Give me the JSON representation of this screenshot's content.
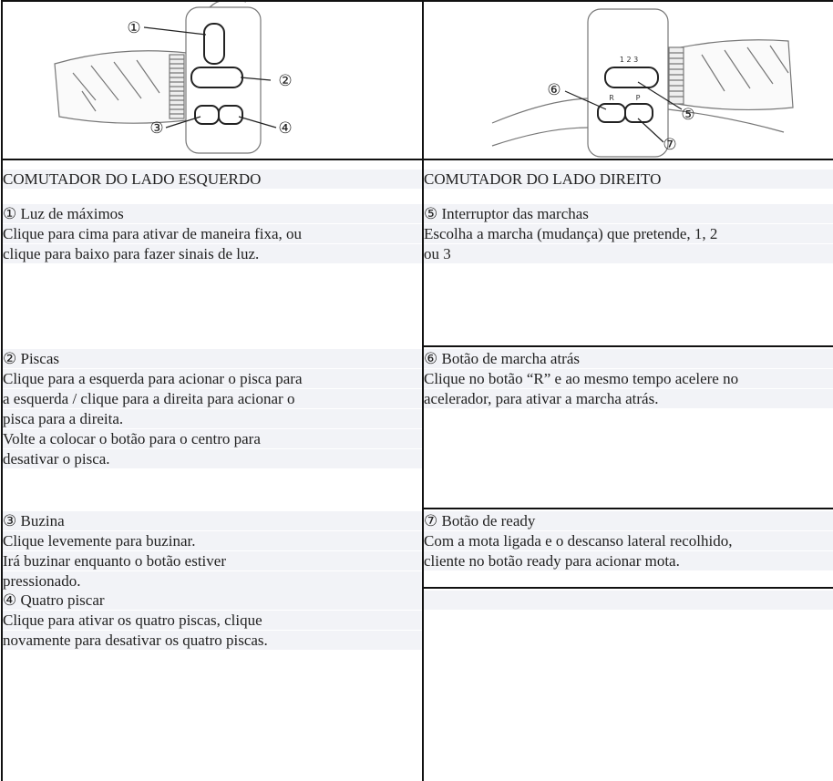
{
  "table": {
    "images": {
      "left": {
        "labels": [
          "①",
          "②",
          "③",
          "④"
        ]
      },
      "right": {
        "labels": [
          "⑤",
          "⑥",
          "⑦"
        ],
        "marks": [
          "1 2 3",
          "R",
          "P"
        ]
      }
    },
    "rows": [
      [
        {
          "heading": "COMUTADOR DO LADO ESQUERDO",
          "lines": [
            "① Luz de máximos",
            "Clique para cima para ativar de maneira fixa, ou",
            "clique para baixo para fazer sinais de luz."
          ]
        },
        {
          "heading": "COMUTADOR DO LADO DIREITO",
          "lines": [
            "⑤ Interruptor das marchas",
            " Escolha a marcha (mudança) que pretende, 1, 2",
            "ou 3"
          ]
        }
      ],
      [
        {
          "lines": [
            "② Piscas",
            "Clique para a esquerda para acionar o pisca para",
            "a esquerda / clique para a direita para acionar o",
            "pisca para a direita.",
            "Volte a colocar o botão para o centro para",
            "desativar o pisca."
          ]
        },
        {
          "lines": [
            "⑥ Botão de marcha atrás",
            "Clique no botão “R” e ao mesmo tempo acelere no",
            "acelerador, para ativar a marcha atrás."
          ]
        }
      ],
      [
        {
          "lines": [
            "③ Buzina",
            "Clique levemente para buzinar.",
            "Irá buzinar enquanto o botão estiver",
            "pressionado."
          ]
        },
        {
          "lines": [
            "⑦ Botão de ready",
            "Com a mota ligada e o descanso lateral recolhido,",
            "cliente no botão ready para acionar mota."
          ]
        }
      ],
      [
        {
          "lines": [
            "④ Quatro piscar",
            "Clique para ativar os quatro piscas, clique",
            "novamente para desativar os quatro piscas."
          ]
        },
        {
          "lines": []
        }
      ]
    ]
  }
}
